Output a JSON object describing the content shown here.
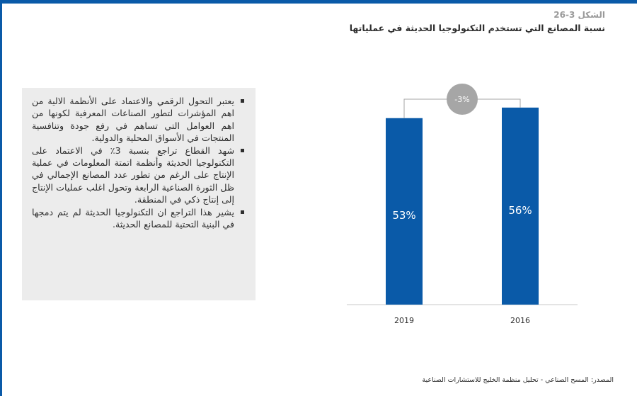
{
  "figure": {
    "number": "الشكل 3-26",
    "title": "نسبة المصانع التي تستخدم التكنولوجيا الحديثة في عملياتها"
  },
  "bullets": [
    "يعتبر التحول الرقمي والاعتماد على الأنظمة الالية من اهم المؤشرات لتطور الصناعات المعرفية لكونها من اهم العوامل التي تساهم في رفع جودة وتنافسية المنتجات في الأسواق المحلية والدولية.",
    "شهد القطاع تراجع بنسبة 3٪ في الاعتماد على التكنولوجيا الحديثة وأنظمة اتمتة المعلومات في عملية الإنتاج على الرغم من تطور عدد المصانع الإجمالي في ظل الثورة الصناعية الرابعة وتحول اغلب عمليات الإنتاج إلى إنتاج ذكي في المنطقة.",
    "يشير هذا التراجع ان التكنولوجيا الحديثة لم يتم دمجها في البنية التحتية للمصانع الحديثة."
  ],
  "chart_data": {
    "type": "bar",
    "categories": [
      "2019",
      "2016"
    ],
    "values": [
      53,
      56
    ],
    "data_labels": [
      "53%",
      "56%"
    ],
    "ylim": [
      0,
      60
    ],
    "annotation": "-3%",
    "bar_color": "#0a5aa8",
    "annotation_color": "#a6a6a6",
    "grid": false
  },
  "source": "المصدر: المسح الصناعي - تحليل منظمة الخليج للاستشارات الصناعية"
}
